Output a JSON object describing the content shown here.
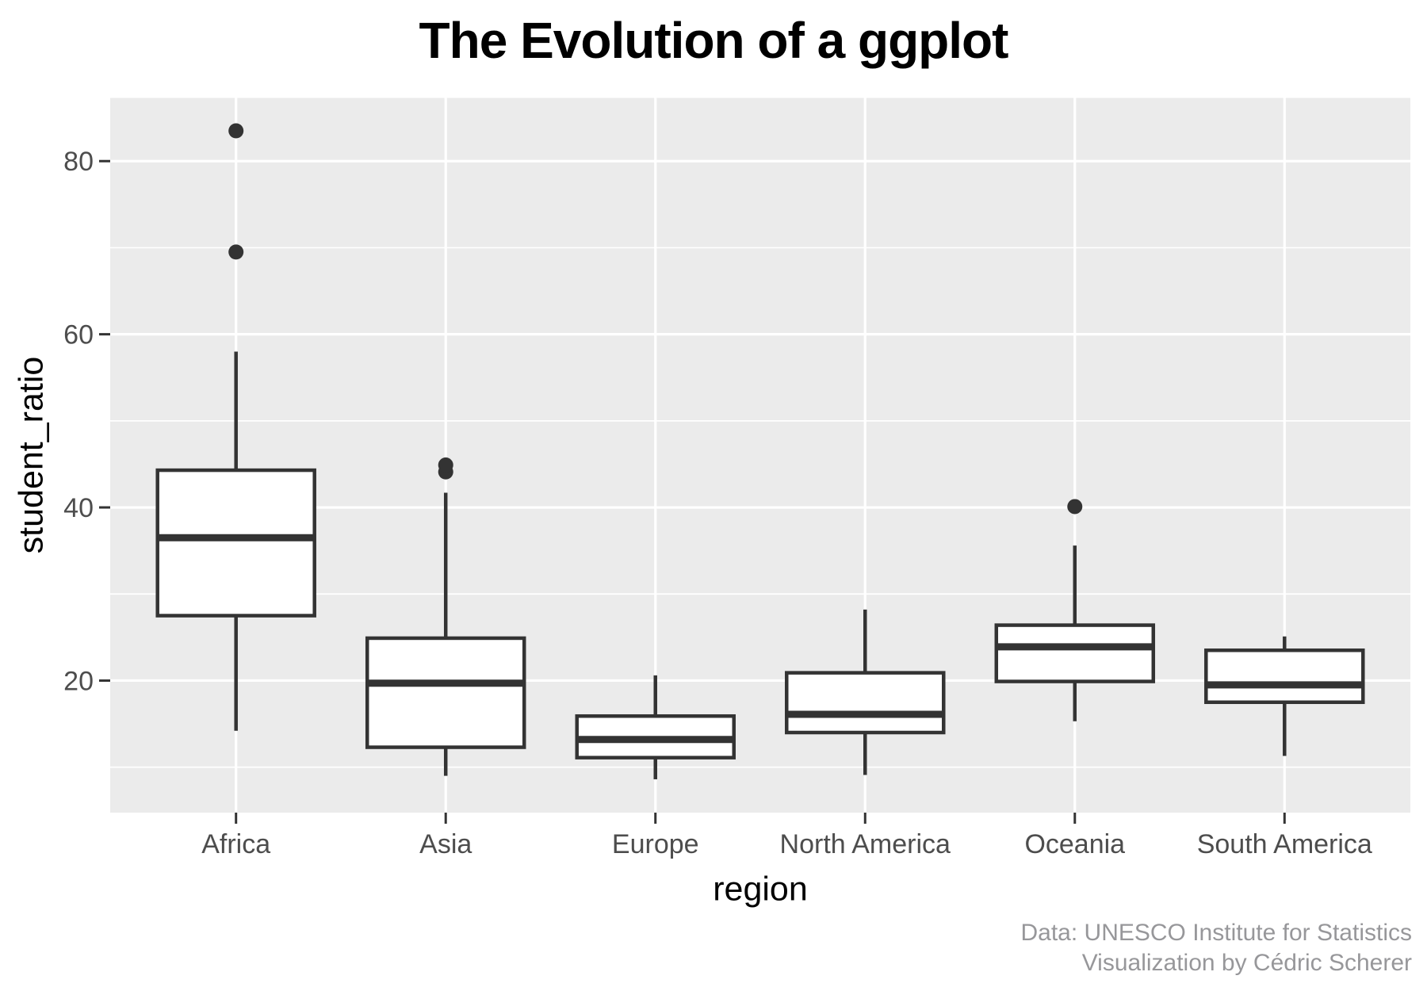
{
  "title": "The Evolution of a ggplot",
  "y_axis_title": "student_ratio",
  "x_axis_title": "region",
  "caption": {
    "line1": "Data: UNESCO Institute for Statistics",
    "line2": "Visualization by Cédric Scherer"
  },
  "colors": {
    "panel_background": "#EBEBEB",
    "gridline": "#FFFFFF",
    "box_stroke": "#333333",
    "box_fill": "#FFFFFF",
    "outlier": "#333333",
    "tick_mark": "#333333",
    "tick_label": "#4D4D4D",
    "axis_title": "#000000",
    "title": "#000000",
    "caption": "#97979A"
  },
  "chart_data": {
    "type": "boxplot",
    "title": "The Evolution of a ggplot",
    "xlabel": "region",
    "ylabel": "student_ratio",
    "categories": [
      "Africa",
      "Asia",
      "Europe",
      "North America",
      "Oceania",
      "South America"
    ],
    "y_major_ticks": [
      20,
      40,
      60,
      80
    ],
    "y_minor_ticks": [
      10,
      30,
      50,
      70
    ],
    "ylim": [
      4.75,
      87.3
    ],
    "grid": "major+minor horizontal, white on grey panel",
    "legend": "none",
    "series": [
      {
        "name": "Africa",
        "whisker_low": 14.2,
        "q1": 27.5,
        "median": 36.5,
        "q3": 44.3,
        "whisker_high": 58.0,
        "outliers": [
          69.5,
          83.5
        ]
      },
      {
        "name": "Asia",
        "whisker_low": 9.0,
        "q1": 12.3,
        "median": 19.7,
        "q3": 24.9,
        "whisker_high": 41.7,
        "outliers": [
          44.1,
          44.9
        ]
      },
      {
        "name": "Europe",
        "whisker_low": 8.6,
        "q1": 11.1,
        "median": 13.2,
        "q3": 15.9,
        "whisker_high": 20.6,
        "outliers": []
      },
      {
        "name": "North America",
        "whisker_low": 9.1,
        "q1": 14.0,
        "median": 16.1,
        "q3": 20.9,
        "whisker_high": 28.2,
        "outliers": []
      },
      {
        "name": "Oceania",
        "whisker_low": 15.3,
        "q1": 19.9,
        "median": 23.9,
        "q3": 26.4,
        "whisker_high": 35.6,
        "outliers": [
          40.1
        ]
      },
      {
        "name": "South America",
        "whisker_low": 11.3,
        "q1": 17.5,
        "median": 19.5,
        "q3": 23.5,
        "whisker_high": 25.1,
        "outliers": []
      }
    ]
  }
}
